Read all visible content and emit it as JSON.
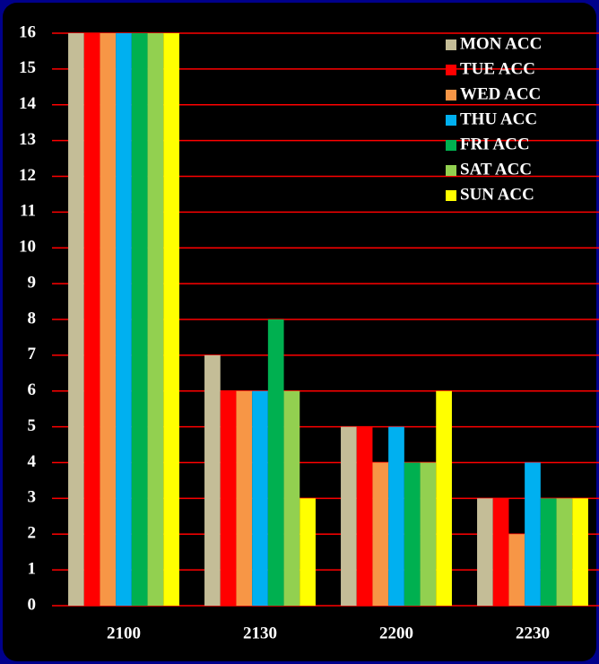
{
  "chart_data": {
    "type": "bar",
    "categories": [
      "2100",
      "2130",
      "2200",
      "2230"
    ],
    "series": [
      {
        "name": "MON ACC",
        "color": "#c4bd97",
        "values": [
          16,
          7,
          5,
          3
        ]
      },
      {
        "name": "TUE ACC",
        "color": "#ff0000",
        "values": [
          16,
          6,
          5,
          3
        ]
      },
      {
        "name": "WED ACC",
        "color": "#f79646",
        "values": [
          16,
          6,
          4,
          2
        ]
      },
      {
        "name": "THU ACC",
        "color": "#00b0f0",
        "values": [
          16,
          6,
          5,
          4
        ]
      },
      {
        "name": "FRI ACC",
        "color": "#00b050",
        "values": [
          16,
          8,
          4,
          3
        ]
      },
      {
        "name": "SAT ACC",
        "color": "#92d050",
        "values": [
          16,
          6,
          4,
          3
        ]
      },
      {
        "name": "SUN ACC",
        "color": "#ffff00",
        "values": [
          16,
          3,
          6,
          3
        ]
      }
    ],
    "ylim": [
      0,
      16
    ],
    "yticks": [
      0,
      1,
      2,
      3,
      4,
      5,
      6,
      7,
      8,
      9,
      10,
      11,
      12,
      13,
      14,
      15,
      16
    ],
    "grid": true,
    "grid_color": "#ff0000",
    "legend": "upper right"
  }
}
